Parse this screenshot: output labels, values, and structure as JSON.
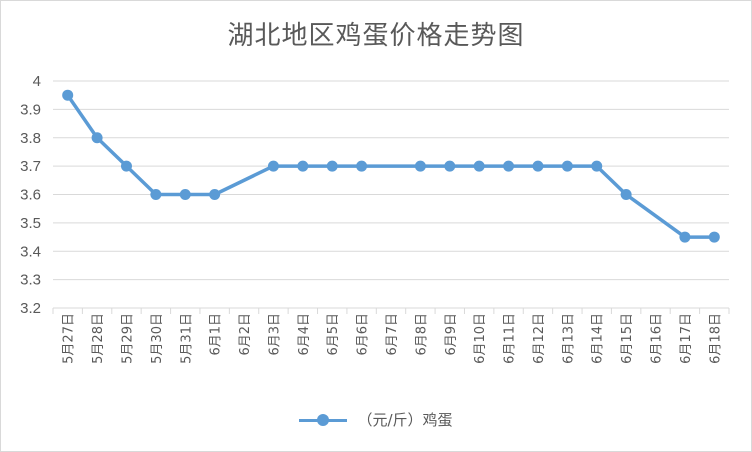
{
  "chart_data": {
    "type": "line",
    "title": "湖北地区鸡蛋价格走势图",
    "xlabel": "",
    "ylabel": "",
    "ylim": [
      3.2,
      4
    ],
    "y_ticks": [
      "4",
      "3.9",
      "3.8",
      "3.7",
      "3.6",
      "3.5",
      "3.4",
      "3.3",
      "3.2"
    ],
    "grid": true,
    "legend_position": "bottom",
    "categories": [
      "5月27日",
      "5月28日",
      "5月29日",
      "5月30日",
      "5月31日",
      "6月1日",
      "6月2日",
      "6月3日",
      "6月4日",
      "6月5日",
      "6月6日",
      "6月7日",
      "6月8日",
      "6月9日",
      "6月10日",
      "6月11日",
      "6月12日",
      "6月13日",
      "6月14日",
      "6月15日",
      "6月16日",
      "6月17日",
      "6月18日"
    ],
    "series": [
      {
        "name": "（元/斤）鸡蛋",
        "color": "#5b9bd5",
        "values": [
          3.95,
          3.8,
          3.7,
          3.6,
          3.6,
          3.6,
          null,
          3.7,
          3.7,
          3.7,
          3.7,
          null,
          3.7,
          3.7,
          3.7,
          3.7,
          3.7,
          3.7,
          3.7,
          3.6,
          null,
          3.45,
          3.45
        ]
      }
    ]
  }
}
